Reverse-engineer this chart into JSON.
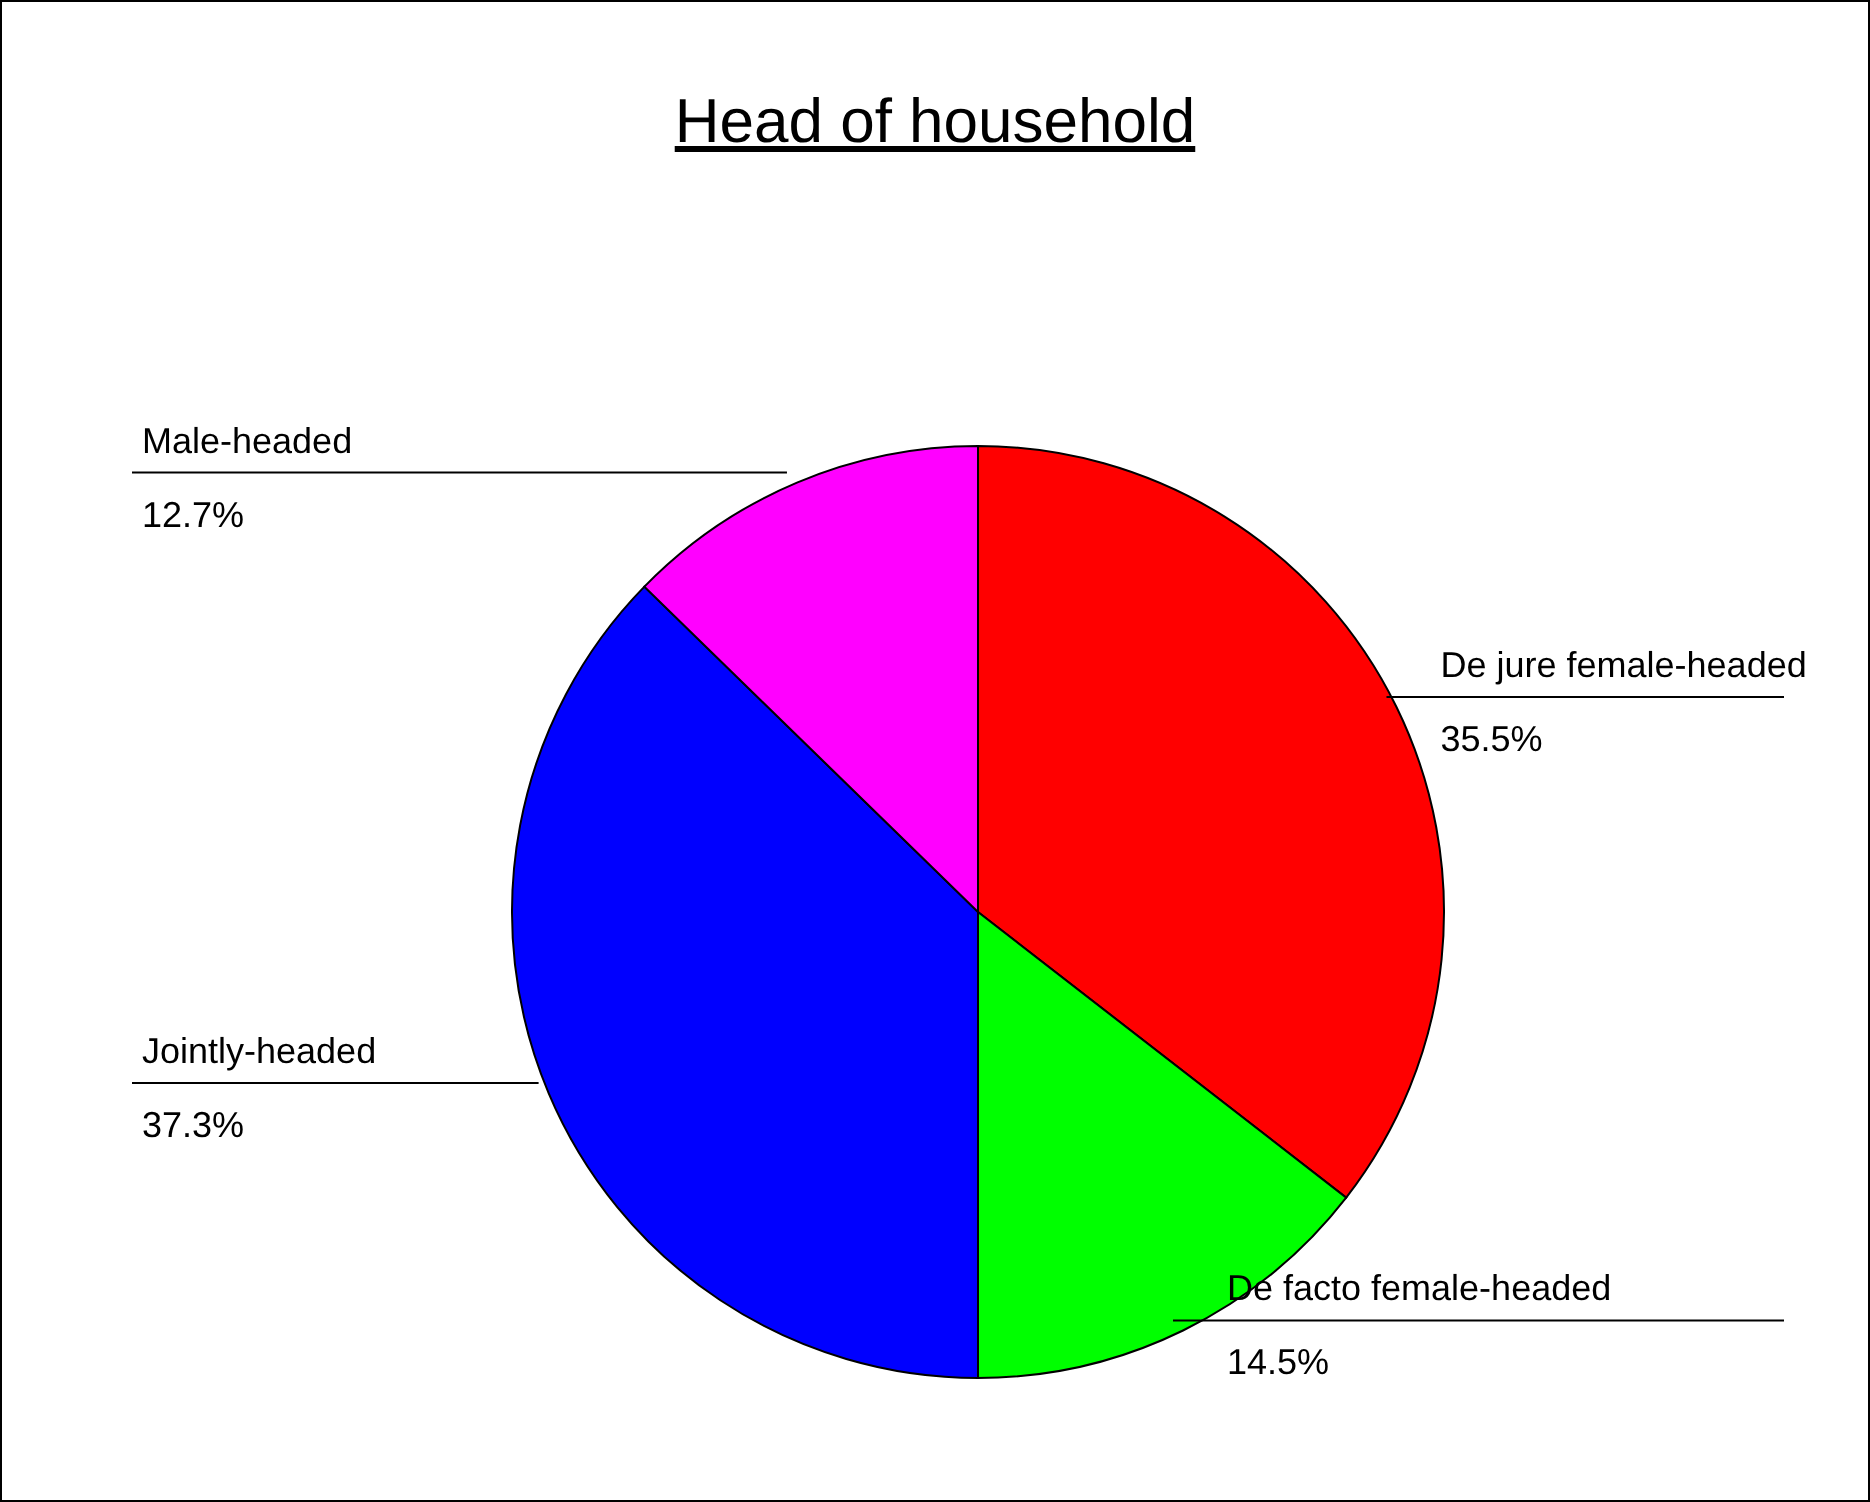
{
  "chart_data": {
    "type": "pie",
    "title": "Head of household",
    "categories": [
      "De jure female-headed",
      "De facto female-headed",
      "Jointly-headed",
      "Male-headed"
    ],
    "values": [
      35.5,
      14.5,
      37.3,
      12.7
    ],
    "colors": [
      "#ff0000",
      "#00ff00",
      "#0000ff",
      "#ff00ff"
    ],
    "value_labels": [
      "35.5%",
      "14.5%",
      "37.3%",
      "12.7%"
    ]
  }
}
